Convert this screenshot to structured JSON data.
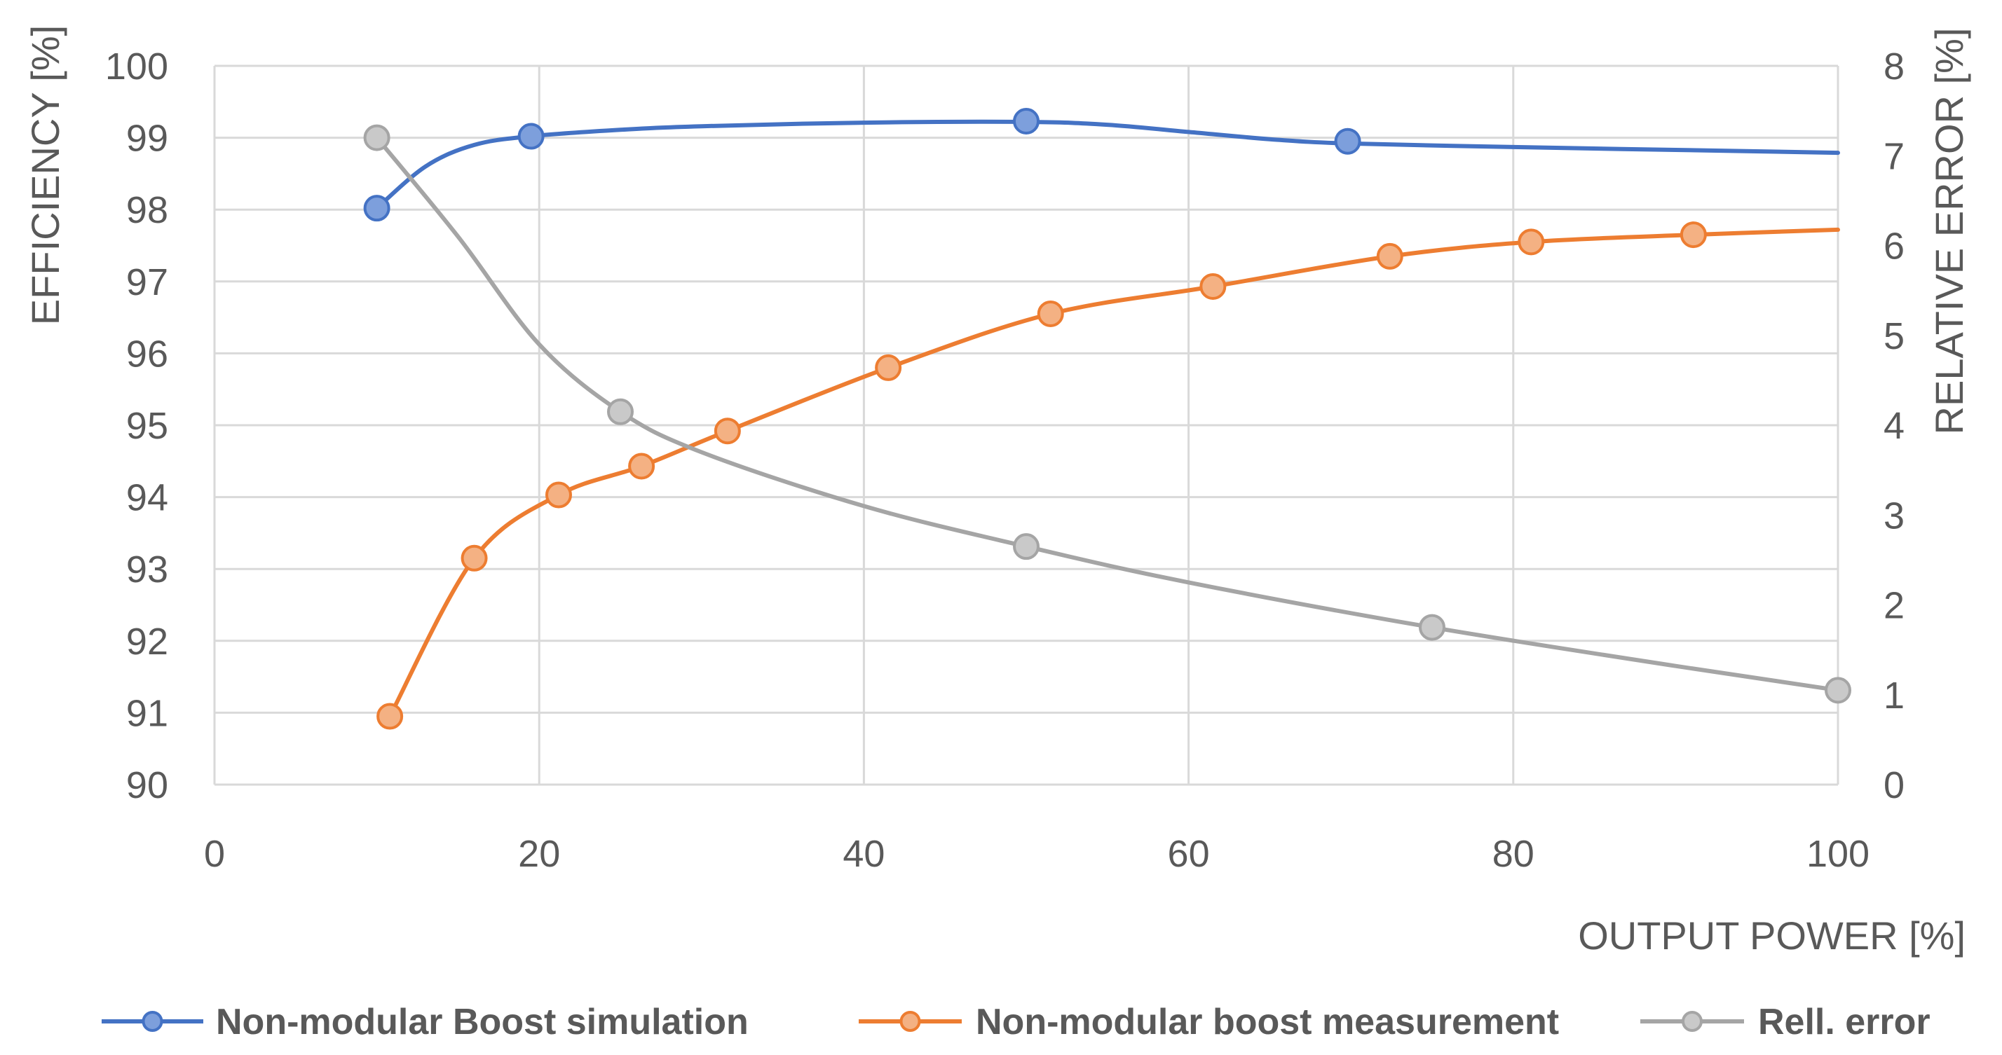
{
  "chart_data": {
    "type": "line",
    "xlabel": "OUTPUT POWER [%]",
    "ylabel": "EFFICIENCY [%]",
    "y2label": "RELATIVE ERROR [%]",
    "xlim": [
      0,
      100
    ],
    "ylim": [
      90,
      100
    ],
    "y2lim": [
      0,
      8
    ],
    "x_ticks": [
      "0",
      "20",
      "40",
      "60",
      "80",
      "100"
    ],
    "y_ticks": [
      "90",
      "91",
      "92",
      "93",
      "94",
      "95",
      "96",
      "97",
      "98",
      "99",
      "100"
    ],
    "y2_ticks": [
      "0",
      "1",
      "2",
      "3",
      "4",
      "5",
      "6",
      "7",
      "8"
    ],
    "grid": true,
    "legend_position": "bottom",
    "series": [
      {
        "name": "Non-modular Boost simulation",
        "axis": "left",
        "color": "#4472c4",
        "marker_fill": "#7d9fdc",
        "x": [
          10,
          19.5,
          50,
          69.8
        ],
        "y": [
          98.02,
          99.02,
          99.23,
          98.95
        ],
        "curve_x": [
          10,
          13,
          16,
          19.5,
          25,
          30,
          40,
          50,
          55,
          60,
          65,
          69.8,
          80,
          90,
          100
        ],
        "curve_y": [
          98.02,
          98.6,
          98.9,
          99.02,
          99.11,
          99.16,
          99.21,
          99.22,
          99.18,
          99.08,
          98.98,
          98.92,
          98.87,
          98.83,
          98.79
        ]
      },
      {
        "name": "Non-modular boost measurement",
        "axis": "left",
        "color": "#ed7d31",
        "marker_fill": "#f4b183",
        "x": [
          10.8,
          16,
          21.2,
          26.3,
          31.6,
          41.5,
          51.5,
          61.5,
          72.4,
          81.1,
          91.1
        ],
        "y": [
          90.95,
          93.15,
          94.03,
          94.43,
          94.92,
          95.8,
          96.55,
          96.93,
          97.35,
          97.55,
          97.65
        ],
        "curve_x": [
          10.8,
          16,
          21.2,
          26.3,
          31.6,
          41.5,
          51.5,
          61.5,
          72.4,
          81.1,
          91.1,
          100
        ],
        "curve_y": [
          90.95,
          93.15,
          94.03,
          94.43,
          94.92,
          95.8,
          96.55,
          96.93,
          97.35,
          97.55,
          97.65,
          97.72
        ]
      },
      {
        "name": "Rell. error",
        "axis": "right",
        "color": "#a5a5a5",
        "marker_fill": "#c9c9c9",
        "x": [
          10,
          25,
          50,
          75,
          100
        ],
        "y": [
          7.2,
          4.15,
          2.65,
          1.75,
          1.05
        ],
        "curve_x": [
          10,
          15,
          20,
          25,
          30,
          40,
          50,
          60,
          75,
          90,
          100
        ],
        "curve_y": [
          7.2,
          6.1,
          4.9,
          4.15,
          3.7,
          3.1,
          2.65,
          2.25,
          1.75,
          1.32,
          1.05
        ]
      }
    ]
  }
}
